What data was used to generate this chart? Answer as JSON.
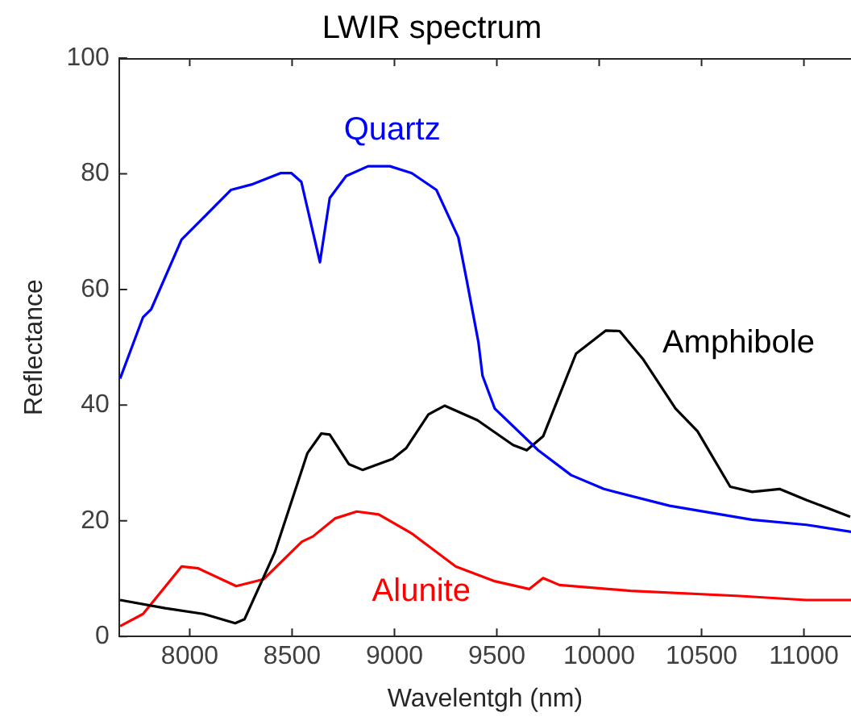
{
  "chart_data": {
    "type": "line",
    "title": "LWIR spectrum",
    "xlabel": "Wavelentgh (nm)",
    "ylabel": "Reflectance",
    "xlim": [
      7655,
      11230
    ],
    "xticks": [
      8000,
      8500,
      9000,
      9500,
      10000,
      10500,
      11000
    ],
    "ylim": [
      0,
      100
    ],
    "yticks": [
      0,
      20,
      40,
      60,
      80,
      100
    ],
    "grid": false,
    "legend": false,
    "marker": "none",
    "line_style": "solid",
    "series": [
      {
        "name": "Quartz",
        "color": "#0000ff",
        "x": [
          7660,
          7772,
          7812,
          7960,
          8067,
          8201,
          8308,
          8443,
          8497,
          8545,
          8636,
          8684,
          8764,
          8871,
          8978,
          9085,
          9205,
          9312,
          9354,
          9410,
          9430,
          9490,
          9702,
          9863,
          10023,
          10344,
          10745,
          11012,
          11230
        ],
        "values": [
          44.6,
          55.2,
          56.6,
          68.6,
          72.4,
          77.2,
          78.2,
          80.1,
          80.1,
          78.6,
          64.7,
          75.8,
          79.6,
          81.3,
          81.3,
          80.1,
          77.2,
          69.0,
          61.4,
          50.9,
          45.1,
          39.4,
          32.2,
          27.9,
          25.5,
          22.6,
          20.2,
          19.3,
          18.1
        ]
      },
      {
        "name": "Amphibole",
        "color": "#000000",
        "x": [
          7660,
          7880,
          8067,
          8222,
          8268,
          8415,
          8575,
          8643,
          8684,
          8777,
          8844,
          8991,
          9058,
          9166,
          9245,
          9405,
          9579,
          9646,
          9726,
          9780,
          9887,
          10033,
          10100,
          10213,
          10373,
          10480,
          10640,
          10747,
          10881,
          11012,
          11226
        ],
        "values": [
          6.3,
          4.9,
          3.9,
          2.3,
          3.0,
          14.5,
          31.7,
          35.1,
          34.9,
          29.8,
          28.8,
          30.7,
          32.6,
          38.4,
          39.9,
          37.4,
          33.1,
          32.2,
          34.6,
          39.4,
          48.9,
          52.9,
          52.8,
          48.0,
          39.4,
          35.5,
          25.9,
          25.0,
          25.5,
          23.6,
          20.7
        ]
      },
      {
        "name": "Alunite",
        "color": "#ff0000",
        "x": [
          7660,
          7772,
          7960,
          8040,
          8227,
          8361,
          8548,
          8602,
          8709,
          8816,
          8923,
          9085,
          9137,
          9300,
          9485,
          9658,
          9726,
          9806,
          10154,
          10688,
          11010,
          11230
        ],
        "values": [
          1.8,
          3.9,
          12.1,
          11.8,
          8.7,
          9.9,
          16.4,
          17.3,
          20.4,
          21.6,
          21.1,
          17.8,
          16.4,
          12.1,
          9.6,
          8.2,
          10.1,
          8.9,
          7.9,
          7.0,
          6.3,
          6.3
        ]
      }
    ]
  }
}
